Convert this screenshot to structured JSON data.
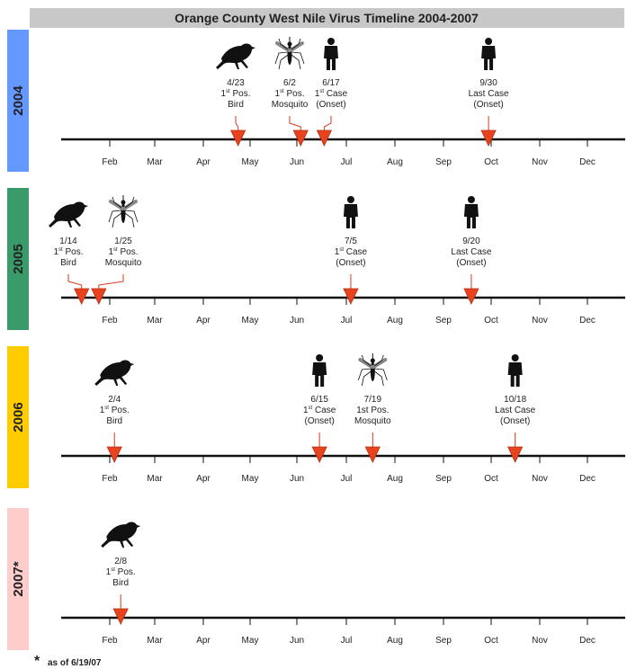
{
  "title": "Orange County West Nile Virus Timeline 2004-2007",
  "months": [
    "Feb",
    "Mar",
    "Apr",
    "May",
    "Jun",
    "Jul",
    "Aug",
    "Sep",
    "Oct",
    "Nov",
    "Dec"
  ],
  "colors": {
    "2004": "#6699ff",
    "2005": "#3a9a6a",
    "2006": "#ffcc00",
    "2007": "#ffcccc",
    "marker": "#e8431f",
    "title_bar": "#c8c8c8"
  },
  "years": [
    {
      "label": "2004",
      "color": "#6699ff",
      "events": [
        {
          "date": "4/23",
          "type": "bird",
          "icon": "crow-icon",
          "line1_sup": "st",
          "line1": "1",
          "line1_rest": " Pos.",
          "line2": "Bird",
          "day": 114
        },
        {
          "date": "6/2",
          "type": "mosquito",
          "icon": "mosquito-icon",
          "line1_sup": "st",
          "line1": "1",
          "line1_rest": " Pos.",
          "line2": "Mosquito",
          "day": 154
        },
        {
          "date": "6/17",
          "type": "case",
          "icon": "person-icon",
          "line1_sup": "st",
          "line1": "1",
          "line1_rest": " Case",
          "line2": "(Onset)",
          "day": 169
        },
        {
          "date": "9/30",
          "type": "case",
          "icon": "person-icon",
          "line1": "Last Case",
          "line2": "(Onset)",
          "day": 274
        }
      ]
    },
    {
      "label": "2005",
      "color": "#3a9a6a",
      "events": [
        {
          "date": "1/14",
          "type": "bird",
          "icon": "crow-icon",
          "line1_sup": "st",
          "line1": "1",
          "line1_rest": " Pos.",
          "line2": "Bird",
          "day": 14
        },
        {
          "date": "1/25",
          "type": "mosquito",
          "icon": "mosquito-icon",
          "line1_sup": "st",
          "line1": "1",
          "line1_rest": " Pos.",
          "line2": "Mosquito",
          "day": 25
        },
        {
          "date": "7/5",
          "type": "case",
          "icon": "person-icon",
          "line1_sup": "st",
          "line1": "1",
          "line1_rest": " Case",
          "line2": "(Onset)",
          "day": 186
        },
        {
          "date": "9/20",
          "type": "case",
          "icon": "person-icon",
          "line1": "Last Case",
          "line2": "(Onset)",
          "day": 263
        }
      ]
    },
    {
      "label": "2006",
      "color": "#ffcc00",
      "events": [
        {
          "date": "2/4",
          "type": "bird",
          "icon": "crow-icon",
          "line1_sup": "st",
          "line1": "1",
          "line1_rest": " Pos.",
          "line2": "Bird",
          "day": 35
        },
        {
          "date": "6/15",
          "type": "case",
          "icon": "person-icon",
          "line1_sup": "st",
          "line1": "1",
          "line1_rest": "  Case",
          "line2": "(Onset)",
          "day": 166
        },
        {
          "date": "7/19",
          "type": "mosquito",
          "icon": "mosquito-icon",
          "line1": "1st Pos.",
          "line2": "Mosquito",
          "day": 200
        },
        {
          "date": "10/18",
          "type": "case",
          "icon": "person-icon",
          "line1": "Last Case",
          "line2": "(Onset)",
          "day": 291
        }
      ]
    },
    {
      "label": "2007*",
      "color": "#ffcccc",
      "events": [
        {
          "date": "2/8",
          "type": "bird",
          "icon": "crow-icon",
          "line1_sup": "st",
          "line1": "1",
          "line1_rest": " Pos.",
          "line2": "Bird",
          "day": 39
        }
      ]
    }
  ],
  "footnote": {
    "star": "*",
    "text": "as of 6/19/07"
  }
}
